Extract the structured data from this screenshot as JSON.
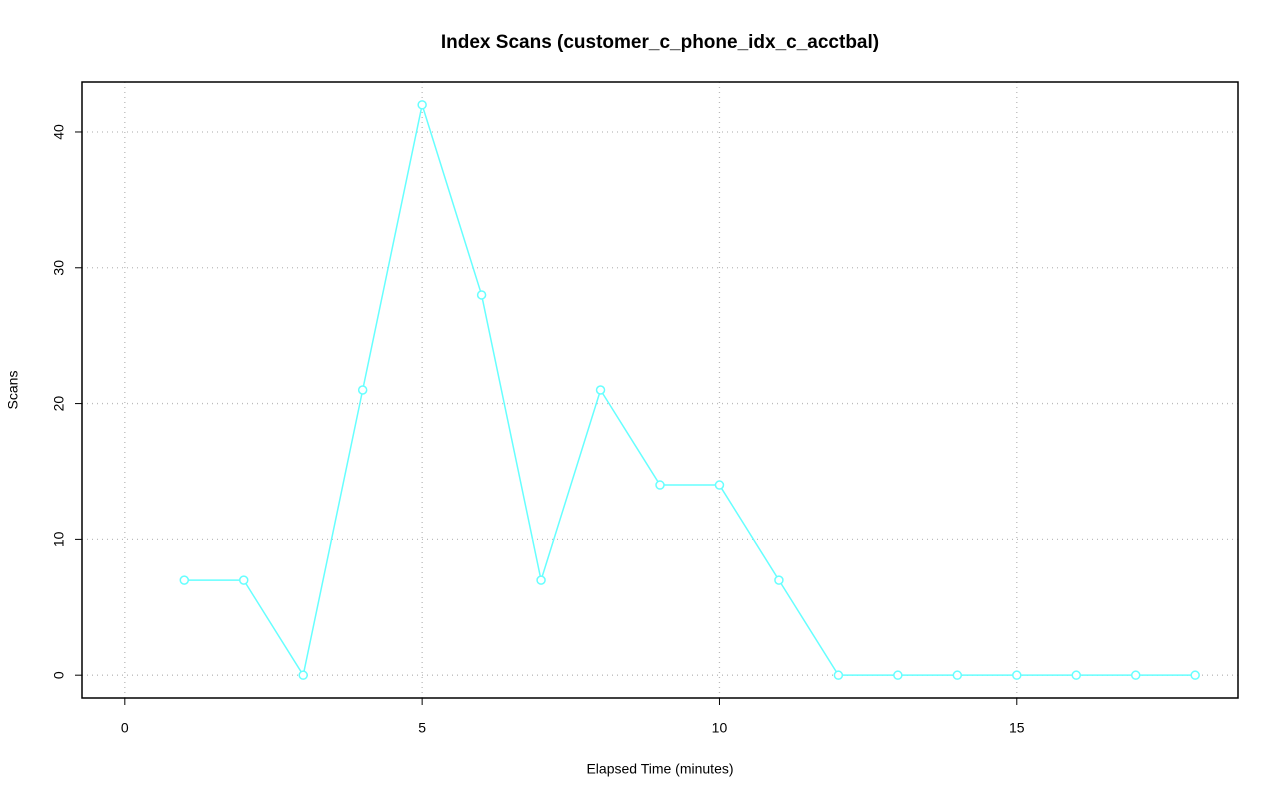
{
  "chart_data": {
    "type": "line",
    "title": "Index Scans (customer_c_phone_idx_c_acctbal)",
    "xlabel": "Elapsed Time (minutes)",
    "ylabel": "Scans",
    "x": [
      1,
      2,
      3,
      4,
      5,
      6,
      7,
      8,
      9,
      10,
      11,
      12,
      13,
      14,
      15,
      16,
      17,
      18
    ],
    "values": [
      7,
      7,
      0,
      21,
      42,
      28,
      7,
      21,
      14,
      14,
      7,
      0,
      0,
      0,
      0,
      0,
      0,
      0
    ],
    "color": "#66ffff",
    "xlim": [
      -0.72,
      18.72
    ],
    "xticks": [
      0,
      5,
      10,
      15
    ],
    "ylim": [
      -1.68,
      43.68
    ],
    "yticks": [
      0,
      10,
      20,
      30,
      40
    ],
    "grid": true
  }
}
